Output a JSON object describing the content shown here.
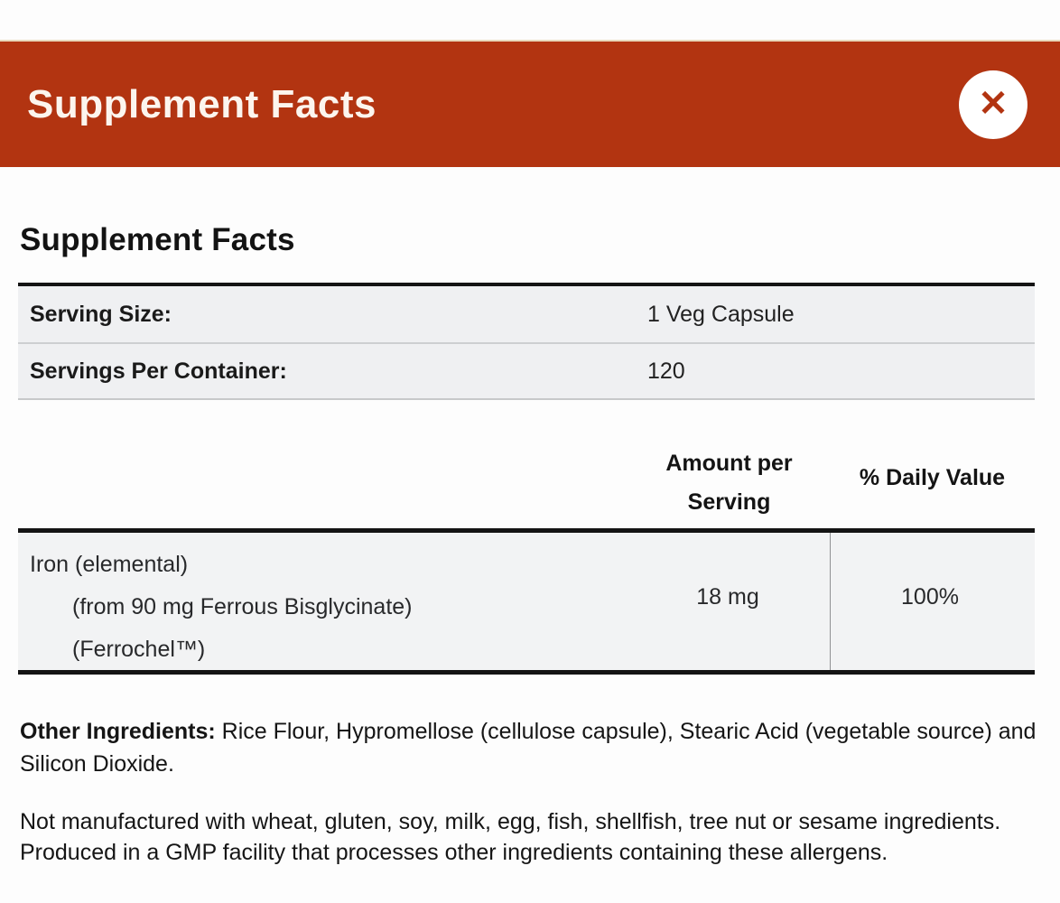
{
  "colors": {
    "header_bg": "#b23411",
    "header_text": "#fcf5ee",
    "row_bg": "#eff0f2",
    "nutrient_row_bg": "#f2f3f4",
    "rule_black": "#141414",
    "text": "#151515"
  },
  "header": {
    "title": "Supplement Facts",
    "close_icon": "✕"
  },
  "panel": {
    "title": "Supplement Facts",
    "serving_rows": [
      {
        "label": "Serving Size:",
        "value": "1 Veg Capsule"
      },
      {
        "label": "Servings Per Container:",
        "value": "120"
      }
    ],
    "columns": {
      "amount": "Amount per Serving",
      "daily_value": "% Daily Value"
    },
    "nutrients": [
      {
        "name_lines": [
          "Iron (elemental)",
          "(from 90 mg Ferrous Bisglycinate)",
          "(Ferrochel™)"
        ],
        "amount": "18 mg",
        "daily_value": "100%"
      }
    ],
    "other_ingredients_label": "Other Ingredients:",
    "other_ingredients_text": " Rice Flour, Hypromellose (cellulose capsule), Stearic Acid (vegetable source) and Silicon Dioxide.",
    "allergen_note": "Not manufactured with wheat, gluten, soy, milk, egg, fish, shellfish, tree nut or sesame ingredients. Produced in a GMP facility that processes other ingredients containing these allergens."
  }
}
